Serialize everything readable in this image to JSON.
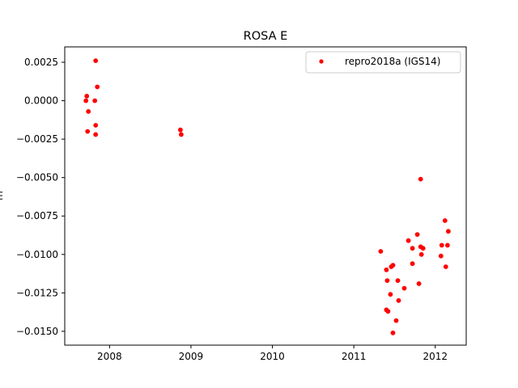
{
  "chart_data": {
    "type": "scatter",
    "title": "ROSA E",
    "ylabel": "m",
    "xlabel": "",
    "xlim": [
      2007.45,
      2012.38
    ],
    "ylim": [
      -0.0159,
      0.0035
    ],
    "xticks": [
      2008,
      2009,
      2010,
      2011,
      2012
    ],
    "yticks": [
      0.0025,
      0.0,
      -0.0025,
      -0.005,
      -0.0075,
      -0.01,
      -0.0125,
      -0.015
    ],
    "ytick_labels": [
      "0.0025",
      "0.0000",
      "−0.0025",
      "−0.0050",
      "−0.0075",
      "−0.0100",
      "−0.0125",
      "−0.0150"
    ],
    "legend_position": "top-right",
    "grid": false,
    "series": [
      {
        "name": "repro2018a (IGS14)",
        "color": "#ff0000",
        "marker": "circle",
        "points": [
          [
            2007.72,
            0.0003
          ],
          [
            2007.71,
            0.0
          ],
          [
            2007.74,
            -0.0007
          ],
          [
            2007.73,
            -0.002
          ],
          [
            2007.83,
            0.0026
          ],
          [
            2007.85,
            0.0009
          ],
          [
            2007.82,
            0.0
          ],
          [
            2007.83,
            -0.0016
          ],
          [
            2007.83,
            -0.0022
          ],
          [
            2008.87,
            -0.0019
          ],
          [
            2008.88,
            -0.0022
          ],
          [
            2011.33,
            -0.0098
          ],
          [
            2011.4,
            -0.011
          ],
          [
            2011.41,
            -0.0117
          ],
          [
            2011.4,
            -0.0136
          ],
          [
            2011.42,
            -0.0137
          ],
          [
            2011.45,
            -0.0126
          ],
          [
            2011.46,
            -0.0108
          ],
          [
            2011.48,
            -0.0107
          ],
          [
            2011.48,
            -0.0151
          ],
          [
            2011.52,
            -0.0143
          ],
          [
            2011.54,
            -0.0117
          ],
          [
            2011.55,
            -0.013
          ],
          [
            2011.62,
            -0.0122
          ],
          [
            2011.67,
            -0.0091
          ],
          [
            2011.72,
            -0.0096
          ],
          [
            2011.72,
            -0.0106
          ],
          [
            2011.78,
            -0.0087
          ],
          [
            2011.8,
            -0.0119
          ],
          [
            2011.82,
            -0.0051
          ],
          [
            2011.82,
            -0.0095
          ],
          [
            2011.83,
            -0.01
          ],
          [
            2011.85,
            -0.0096
          ],
          [
            2012.07,
            -0.0101
          ],
          [
            2012.08,
            -0.0094
          ],
          [
            2012.12,
            -0.0078
          ],
          [
            2012.13,
            -0.0108
          ],
          [
            2012.15,
            -0.0094
          ],
          [
            2012.16,
            -0.0085
          ]
        ]
      }
    ]
  }
}
